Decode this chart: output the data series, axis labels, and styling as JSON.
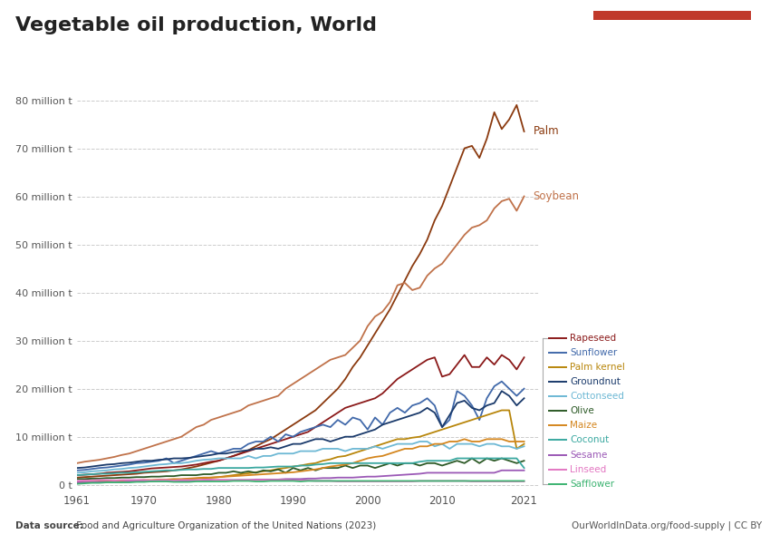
{
  "title": "Vegetable oil production, World",
  "source_text_bold": "Data source:",
  "source_text_rest": " Food and Agriculture Organization of the United Nations (2023)",
  "owid_url": "OurWorldInData.org/food-supply | CC BY",
  "background_color": "#ffffff",
  "plot_bg_color": "#ffffff",
  "years": [
    1961,
    1962,
    1963,
    1964,
    1965,
    1966,
    1967,
    1968,
    1969,
    1970,
    1971,
    1972,
    1973,
    1974,
    1975,
    1976,
    1977,
    1978,
    1979,
    1980,
    1981,
    1982,
    1983,
    1984,
    1985,
    1986,
    1987,
    1988,
    1989,
    1990,
    1991,
    1992,
    1993,
    1994,
    1995,
    1996,
    1997,
    1998,
    1999,
    2000,
    2001,
    2002,
    2003,
    2004,
    2005,
    2006,
    2007,
    2008,
    2009,
    2010,
    2011,
    2012,
    2013,
    2014,
    2015,
    2016,
    2017,
    2018,
    2019,
    2020,
    2021
  ],
  "series": {
    "Palm": {
      "color": "#8B3A0F",
      "values": [
        1.5,
        1.6,
        1.7,
        1.8,
        1.9,
        2.0,
        2.1,
        2.2,
        2.3,
        2.5,
        2.6,
        2.7,
        2.8,
        3.0,
        3.2,
        3.5,
        3.8,
        4.2,
        4.6,
        5.0,
        5.5,
        6.0,
        6.6,
        7.2,
        8.0,
        8.8,
        9.5,
        10.5,
        11.5,
        12.5,
        13.5,
        14.5,
        15.5,
        17.0,
        18.5,
        20.0,
        22.0,
        24.5,
        26.5,
        29.0,
        31.5,
        34.0,
        36.5,
        39.5,
        42.5,
        45.5,
        48.0,
        51.0,
        55.0,
        58.0,
        62.0,
        66.0,
        70.0,
        70.5,
        68.0,
        72.0,
        77.5,
        74.0,
        76.0,
        79.0,
        73.5
      ]
    },
    "Soybean": {
      "color": "#c0724a",
      "values": [
        4.5,
        4.8,
        5.0,
        5.2,
        5.5,
        5.8,
        6.2,
        6.5,
        7.0,
        7.5,
        8.0,
        8.5,
        9.0,
        9.5,
        10.0,
        11.0,
        12.0,
        12.5,
        13.5,
        14.0,
        14.5,
        15.0,
        15.5,
        16.5,
        17.0,
        17.5,
        18.0,
        18.5,
        20.0,
        21.0,
        22.0,
        23.0,
        24.0,
        25.0,
        26.0,
        26.5,
        27.0,
        28.5,
        30.0,
        33.0,
        35.0,
        36.0,
        38.0,
        41.5,
        42.0,
        40.5,
        41.0,
        43.5,
        45.0,
        46.0,
        48.0,
        50.0,
        52.0,
        53.5,
        54.0,
        55.0,
        57.5,
        59.0,
        59.5,
        57.0,
        60.0
      ]
    },
    "Rapeseed": {
      "color": "#8B1A1A",
      "values": [
        2.0,
        2.1,
        2.2,
        2.3,
        2.5,
        2.6,
        2.7,
        2.8,
        3.0,
        3.2,
        3.4,
        3.5,
        3.6,
        3.7,
        3.8,
        4.0,
        4.2,
        4.5,
        4.8,
        5.0,
        5.5,
        6.0,
        6.5,
        7.0,
        7.5,
        8.0,
        8.5,
        9.0,
        9.5,
        10.0,
        10.5,
        11.0,
        12.0,
        13.0,
        14.0,
        15.0,
        16.0,
        16.5,
        17.0,
        17.5,
        18.0,
        19.0,
        20.5,
        22.0,
        23.0,
        24.0,
        25.0,
        26.0,
        26.5,
        22.5,
        23.0,
        25.0,
        27.0,
        24.5,
        24.5,
        26.5,
        25.0,
        27.0,
        26.0,
        24.0,
        26.5
      ]
    },
    "Sunflower": {
      "color": "#4169aa",
      "values": [
        3.0,
        3.1,
        3.3,
        3.5,
        3.6,
        3.8,
        4.0,
        4.2,
        4.5,
        4.6,
        4.8,
        5.0,
        5.5,
        4.5,
        5.0,
        5.5,
        6.0,
        6.5,
        7.0,
        6.5,
        7.0,
        7.5,
        7.5,
        8.5,
        9.0,
        9.0,
        10.0,
        9.0,
        10.5,
        10.0,
        11.0,
        11.5,
        12.0,
        12.5,
        12.0,
        13.5,
        12.5,
        14.0,
        13.5,
        11.5,
        14.0,
        12.5,
        15.0,
        16.0,
        15.0,
        16.5,
        17.0,
        18.0,
        16.5,
        12.0,
        13.5,
        19.5,
        18.5,
        16.5,
        13.5,
        18.0,
        20.5,
        21.5,
        20.0,
        18.5,
        20.0
      ]
    },
    "Palm kernel": {
      "color": "#b8860b",
      "values": [
        0.5,
        0.5,
        0.6,
        0.6,
        0.6,
        0.7,
        0.7,
        0.7,
        0.8,
        0.8,
        0.9,
        0.9,
        1.0,
        1.0,
        1.1,
        1.2,
        1.3,
        1.4,
        1.5,
        1.6,
        1.8,
        2.0,
        2.2,
        2.4,
        2.6,
        2.8,
        3.0,
        3.3,
        3.5,
        3.8,
        4.0,
        4.3,
        4.5,
        5.0,
        5.3,
        5.8,
        6.0,
        6.5,
        7.0,
        7.5,
        8.0,
        8.5,
        9.0,
        9.5,
        9.5,
        9.8,
        10.0,
        10.5,
        11.0,
        11.5,
        12.0,
        12.5,
        13.0,
        13.5,
        14.0,
        14.5,
        15.0,
        15.5,
        15.5,
        7.5,
        8.5
      ]
    },
    "Groundnut": {
      "color": "#1a3a6b",
      "values": [
        3.5,
        3.6,
        3.8,
        4.0,
        4.2,
        4.3,
        4.5,
        4.6,
        4.8,
        5.0,
        5.0,
        5.2,
        5.3,
        5.5,
        5.5,
        5.6,
        5.8,
        6.0,
        6.2,
        6.5,
        6.5,
        6.8,
        7.0,
        7.2,
        7.5,
        7.5,
        7.8,
        7.5,
        8.0,
        8.5,
        8.5,
        9.0,
        9.5,
        9.5,
        9.0,
        9.5,
        10.0,
        10.0,
        10.5,
        11.0,
        11.5,
        12.5,
        13.0,
        13.5,
        14.0,
        14.5,
        15.0,
        16.0,
        15.0,
        12.0,
        14.5,
        17.0,
        17.5,
        16.0,
        15.5,
        16.5,
        17.0,
        19.5,
        18.5,
        16.5,
        18.0
      ]
    },
    "Cottonseed": {
      "color": "#6db8d4",
      "values": [
        2.5,
        2.6,
        2.8,
        2.9,
        3.0,
        3.2,
        3.3,
        3.5,
        3.6,
        3.8,
        4.0,
        4.2,
        4.3,
        4.5,
        4.5,
        4.7,
        5.0,
        5.2,
        5.3,
        5.5,
        5.5,
        5.5,
        5.5,
        6.0,
        5.5,
        6.0,
        6.0,
        6.5,
        6.5,
        6.5,
        7.0,
        7.0,
        7.0,
        7.5,
        7.5,
        7.5,
        7.0,
        7.5,
        7.5,
        7.5,
        8.0,
        7.5,
        8.0,
        8.5,
        8.5,
        8.5,
        9.0,
        9.0,
        8.0,
        8.5,
        7.5,
        8.5,
        8.5,
        8.5,
        8.0,
        8.5,
        8.5,
        8.0,
        8.0,
        7.5,
        8.0
      ]
    },
    "Olive": {
      "color": "#2d5a27",
      "values": [
        1.2,
        1.2,
        1.3,
        1.3,
        1.4,
        1.4,
        1.5,
        1.5,
        1.6,
        1.6,
        1.7,
        1.7,
        1.8,
        1.8,
        2.0,
        2.0,
        2.0,
        2.2,
        2.2,
        2.5,
        2.5,
        2.8,
        2.5,
        2.8,
        2.5,
        3.0,
        2.8,
        3.2,
        2.5,
        3.5,
        3.0,
        3.5,
        3.0,
        3.5,
        3.5,
        3.5,
        4.0,
        3.5,
        4.0,
        4.0,
        3.5,
        4.0,
        4.5,
        4.0,
        4.5,
        4.5,
        4.0,
        4.5,
        4.5,
        4.0,
        4.5,
        5.0,
        4.5,
        5.5,
        4.5,
        5.5,
        5.0,
        5.5,
        5.0,
        4.5,
        5.0
      ]
    },
    "Maize": {
      "color": "#d4861e",
      "values": [
        0.5,
        0.6,
        0.6,
        0.7,
        0.7,
        0.8,
        0.8,
        0.9,
        0.9,
        1.0,
        1.0,
        1.1,
        1.1,
        1.2,
        1.2,
        1.3,
        1.4,
        1.5,
        1.5,
        1.6,
        1.7,
        1.8,
        1.9,
        2.0,
        2.1,
        2.2,
        2.3,
        2.4,
        2.5,
        2.6,
        2.8,
        3.0,
        3.2,
        3.5,
        3.8,
        4.0,
        4.2,
        4.5,
        5.0,
        5.5,
        5.8,
        6.0,
        6.5,
        7.0,
        7.5,
        7.5,
        8.0,
        8.0,
        8.5,
        8.5,
        9.0,
        9.0,
        9.5,
        9.0,
        9.0,
        9.5,
        9.5,
        9.5,
        9.0,
        9.0,
        9.0
      ]
    },
    "Coconut": {
      "color": "#3aa8a0",
      "values": [
        2.0,
        2.1,
        2.2,
        2.3,
        2.3,
        2.4,
        2.5,
        2.5,
        2.6,
        2.7,
        2.8,
        2.9,
        3.0,
        3.0,
        3.1,
        3.2,
        3.2,
        3.3,
        3.3,
        3.5,
        3.5,
        3.5,
        3.5,
        3.5,
        3.6,
        3.6,
        3.7,
        3.8,
        3.8,
        3.8,
        4.0,
        4.0,
        4.2,
        4.3,
        4.5,
        4.5,
        4.5,
        4.5,
        4.5,
        4.5,
        4.5,
        4.5,
        4.5,
        4.5,
        4.5,
        4.5,
        4.8,
        5.0,
        5.0,
        5.0,
        5.0,
        5.5,
        5.5,
        5.5,
        5.5,
        5.5,
        5.5,
        5.5,
        5.5,
        5.5,
        3.5
      ]
    },
    "Sesame": {
      "color": "#9b59b6",
      "values": [
        0.5,
        0.5,
        0.5,
        0.6,
        0.6,
        0.6,
        0.6,
        0.7,
        0.7,
        0.7,
        0.7,
        0.8,
        0.8,
        0.8,
        0.8,
        0.8,
        0.9,
        0.9,
        0.9,
        1.0,
        1.0,
        1.0,
        1.0,
        1.0,
        1.1,
        1.1,
        1.1,
        1.1,
        1.2,
        1.2,
        1.2,
        1.3,
        1.3,
        1.4,
        1.4,
        1.5,
        1.5,
        1.5,
        1.6,
        1.7,
        1.7,
        1.8,
        1.9,
        2.0,
        2.1,
        2.2,
        2.3,
        2.5,
        2.5,
        2.5,
        2.5,
        2.5,
        2.5,
        2.5,
        2.5,
        2.5,
        2.5,
        3.0,
        3.0,
        3.0,
        3.0
      ]
    },
    "Linseed": {
      "color": "#e377c2",
      "values": [
        0.8,
        0.9,
        0.9,
        1.0,
        1.0,
        0.9,
        1.0,
        1.0,
        1.0,
        1.0,
        0.9,
        1.0,
        1.0,
        0.9,
        1.0,
        1.0,
        1.0,
        1.1,
        1.1,
        1.0,
        1.0,
        0.9,
        1.0,
        1.0,
        1.0,
        1.0,
        1.0,
        1.0,
        1.0,
        0.9,
        0.9,
        0.9,
        0.8,
        0.8,
        0.8,
        0.7,
        0.7,
        0.7,
        0.7,
        0.7,
        0.7,
        0.7,
        0.7,
        0.7,
        0.7,
        0.7,
        0.8,
        0.8,
        0.8,
        0.8,
        0.8,
        0.8,
        0.8,
        0.7,
        0.7,
        0.7,
        0.7,
        0.7,
        0.7,
        0.7,
        0.7
      ]
    },
    "Safflower": {
      "color": "#3cb371",
      "values": [
        0.2,
        0.3,
        0.4,
        0.4,
        0.5,
        0.5,
        0.5,
        0.5,
        0.6,
        0.6,
        0.7,
        0.7,
        0.7,
        0.6,
        0.6,
        0.6,
        0.7,
        0.7,
        0.7,
        0.7,
        0.7,
        0.8,
        0.8,
        0.8,
        0.7,
        0.7,
        0.8,
        0.8,
        0.8,
        0.8,
        0.7,
        0.8,
        0.8,
        0.8,
        0.8,
        0.8,
        0.8,
        0.8,
        0.8,
        0.8,
        0.8,
        0.8,
        0.8,
        0.8,
        0.8,
        0.8,
        0.8,
        0.8,
        0.8,
        0.8,
        0.8,
        0.8,
        0.8,
        0.8,
        0.8,
        0.8,
        0.8,
        0.8,
        0.8,
        0.8,
        0.8
      ]
    }
  },
  "yticks": [
    0,
    10,
    20,
    30,
    40,
    50,
    60,
    70,
    80
  ],
  "ytick_labels": [
    "0 t",
    "10 million t",
    "20 million t",
    "30 million t",
    "40 million t",
    "50 million t",
    "60 million t",
    "70 million t",
    "80 million t"
  ],
  "xticks": [
    1961,
    1970,
    1980,
    1990,
    2000,
    2010,
    2021
  ],
  "xlim": [
    1961,
    2023
  ],
  "ylim": [
    -1,
    85
  ],
  "legend_names": [
    "Rapeseed",
    "Sunflower",
    "Palm kernel",
    "Groundnut",
    "Cottonseed",
    "Olive",
    "Maize",
    "Coconut",
    "Sesame",
    "Linseed",
    "Safflower"
  ],
  "owid_logo_bg": "#1c3557",
  "owid_logo_stripe": "#c0392b"
}
